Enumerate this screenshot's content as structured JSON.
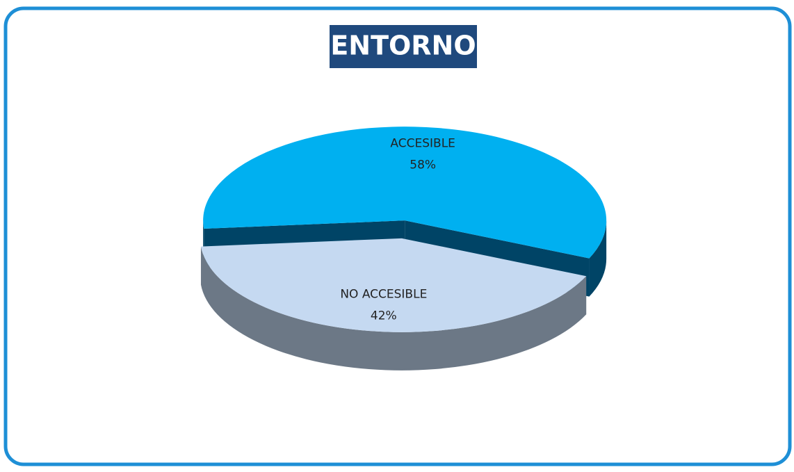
{
  "chart_data": {
    "type": "pie",
    "title": "ENTORNO",
    "categories": [
      "ACCESIBLE",
      "NO ACCESIBLE"
    ],
    "values": [
      58,
      42
    ],
    "value_labels": [
      "58%",
      "42%"
    ],
    "colors": [
      "#00b0f0",
      "#c5d9f1"
    ],
    "side_colors": [
      "#004466",
      "#6c7886"
    ]
  }
}
